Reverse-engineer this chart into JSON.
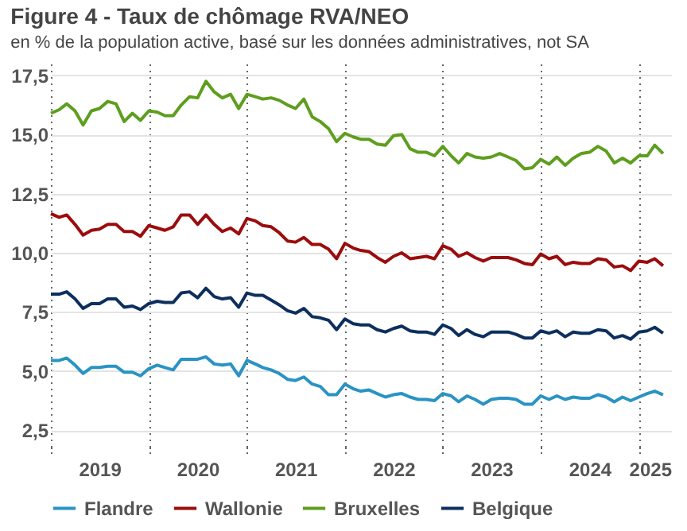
{
  "chart_data": {
    "type": "line",
    "title": "Figure 4 - Taux de chômage RVA/NEO",
    "subtitle": "en % de la population active, basé sur les données administratives, not SA",
    "x": [
      "2019-01",
      "2019-02",
      "2019-03",
      "2019-04",
      "2019-05",
      "2019-06",
      "2019-07",
      "2019-08",
      "2019-09",
      "2019-10",
      "2019-11",
      "2019-12",
      "2020-01",
      "2020-02",
      "2020-03",
      "2020-04",
      "2020-05",
      "2020-06",
      "2020-07",
      "2020-08",
      "2020-09",
      "2020-10",
      "2020-11",
      "2020-12",
      "2021-01",
      "2021-02",
      "2021-03",
      "2021-04",
      "2021-05",
      "2021-06",
      "2021-07",
      "2021-08",
      "2021-09",
      "2021-10",
      "2021-11",
      "2021-12",
      "2022-01",
      "2022-02",
      "2022-03",
      "2022-04",
      "2022-05",
      "2022-06",
      "2022-07",
      "2022-08",
      "2022-09",
      "2022-10",
      "2022-11",
      "2022-12",
      "2023-01",
      "2023-02",
      "2023-03",
      "2023-04",
      "2023-05",
      "2023-06",
      "2023-07",
      "2023-08",
      "2023-09",
      "2023-10",
      "2023-11",
      "2023-12",
      "2024-01",
      "2024-02",
      "2024-03",
      "2024-04",
      "2024-05",
      "2024-06",
      "2024-07",
      "2024-08",
      "2024-09",
      "2024-10",
      "2024-11",
      "2024-12",
      "2025-01",
      "2025-02",
      "2025-03",
      "2025-04"
    ],
    "series": [
      {
        "name": "Flandre",
        "color": "#2a93c4",
        "values": [
          5.45,
          5.45,
          5.55,
          5.25,
          4.9,
          5.15,
          5.15,
          5.2,
          5.2,
          4.95,
          4.95,
          4.8,
          5.1,
          5.25,
          5.15,
          5.05,
          5.5,
          5.5,
          5.5,
          5.6,
          5.3,
          5.25,
          5.3,
          4.8,
          5.45,
          5.3,
          5.15,
          5.05,
          4.9,
          4.65,
          4.6,
          4.75,
          4.45,
          4.35,
          4.0,
          4.0,
          4.45,
          4.25,
          4.15,
          4.2,
          4.05,
          3.9,
          4.0,
          4.05,
          3.9,
          3.8,
          3.8,
          3.75,
          4.05,
          3.95,
          3.7,
          3.95,
          3.8,
          3.6,
          3.8,
          3.85,
          3.85,
          3.8,
          3.6,
          3.6,
          3.95,
          3.8,
          3.95,
          3.8,
          3.9,
          3.85,
          3.85,
          4.0,
          3.9,
          3.7,
          3.9,
          3.75,
          3.9,
          4.05,
          4.15,
          4.0
        ]
      },
      {
        "name": "Wallonie",
        "color": "#9b0d0d",
        "values": [
          11.65,
          11.5,
          11.6,
          11.2,
          10.75,
          10.95,
          11.0,
          11.2,
          11.2,
          10.9,
          10.9,
          10.7,
          11.15,
          11.05,
          10.95,
          11.1,
          11.6,
          11.6,
          11.2,
          11.6,
          11.2,
          10.9,
          11.05,
          10.8,
          11.45,
          11.35,
          11.15,
          11.1,
          10.85,
          10.5,
          10.45,
          10.65,
          10.35,
          10.35,
          10.15,
          9.75,
          10.4,
          10.2,
          10.1,
          10.05,
          9.8,
          9.6,
          9.85,
          10.0,
          9.75,
          9.8,
          9.85,
          9.75,
          10.3,
          10.15,
          9.85,
          10.0,
          9.8,
          9.65,
          9.8,
          9.8,
          9.8,
          9.7,
          9.55,
          9.5,
          9.95,
          9.75,
          9.85,
          9.5,
          9.6,
          9.55,
          9.55,
          9.75,
          9.7,
          9.4,
          9.45,
          9.25,
          9.65,
          9.6,
          9.75,
          9.45
        ]
      },
      {
        "name": "Bruxelles",
        "color": "#5e9e1e",
        "values": [
          15.9,
          16.05,
          16.3,
          16.0,
          15.4,
          16.0,
          16.1,
          16.4,
          16.3,
          15.55,
          15.9,
          15.6,
          16.0,
          15.95,
          15.8,
          15.8,
          16.25,
          16.6,
          16.55,
          17.25,
          16.8,
          16.55,
          16.7,
          16.1,
          16.7,
          16.6,
          16.5,
          16.55,
          16.45,
          16.25,
          16.1,
          16.5,
          15.75,
          15.55,
          15.25,
          14.7,
          15.05,
          14.9,
          14.8,
          14.8,
          14.6,
          14.55,
          14.95,
          15.0,
          14.4,
          14.25,
          14.25,
          14.1,
          14.5,
          14.1,
          13.8,
          14.2,
          14.05,
          14.0,
          14.05,
          14.2,
          14.05,
          13.9,
          13.55,
          13.6,
          13.95,
          13.75,
          14.05,
          13.7,
          14.0,
          14.2,
          14.25,
          14.5,
          14.3,
          13.8,
          14.0,
          13.8,
          14.1,
          14.1,
          14.55,
          14.2
        ]
      },
      {
        "name": "Belgique",
        "color": "#0d2f5e",
        "values": [
          8.25,
          8.25,
          8.35,
          8.05,
          7.65,
          7.85,
          7.85,
          8.05,
          8.05,
          7.7,
          7.75,
          7.6,
          7.85,
          7.95,
          7.9,
          7.9,
          8.3,
          8.35,
          8.1,
          8.5,
          8.15,
          8.05,
          8.1,
          7.7,
          8.3,
          8.2,
          8.2,
          8.0,
          7.8,
          7.55,
          7.45,
          7.65,
          7.3,
          7.25,
          7.15,
          6.75,
          7.2,
          7.0,
          6.95,
          6.95,
          6.75,
          6.65,
          6.8,
          6.9,
          6.7,
          6.65,
          6.65,
          6.55,
          6.95,
          6.8,
          6.5,
          6.75,
          6.55,
          6.45,
          6.65,
          6.65,
          6.65,
          6.55,
          6.4,
          6.4,
          6.7,
          6.6,
          6.7,
          6.45,
          6.65,
          6.6,
          6.6,
          6.75,
          6.7,
          6.4,
          6.5,
          6.35,
          6.65,
          6.7,
          6.85,
          6.6
        ]
      }
    ],
    "xlim": [
      "2019-01",
      "2025-05"
    ],
    "xticks": [
      {
        "value": "2019-01",
        "label": null
      },
      {
        "value": "2019-07",
        "label": "2019"
      },
      {
        "value": "2020-01",
        "label": null
      },
      {
        "value": "2020-07",
        "label": "2020"
      },
      {
        "value": "2021-01",
        "label": null
      },
      {
        "value": "2021-07",
        "label": "2021"
      },
      {
        "value": "2022-01",
        "label": null
      },
      {
        "value": "2022-07",
        "label": "2022"
      },
      {
        "value": "2023-01",
        "label": null
      },
      {
        "value": "2023-07",
        "label": "2023"
      },
      {
        "value": "2024-01",
        "label": null
      },
      {
        "value": "2024-07",
        "label": "2024"
      },
      {
        "value": "2025-01",
        "label": null
      },
      {
        "value": "2025-05",
        "label": "2025"
      }
    ],
    "ylim": [
      1.8,
      18
    ],
    "yticks": [
      {
        "value": 2.5,
        "label": "2,5"
      },
      {
        "value": 5,
        "label": "5,0"
      },
      {
        "value": 7.5,
        "label": "7,5"
      },
      {
        "value": 10,
        "label": "10,0"
      },
      {
        "value": 12.5,
        "label": "12,5"
      },
      {
        "value": 15,
        "label": "15,0"
      },
      {
        "value": 17.5,
        "label": "17,5"
      }
    ],
    "grid": true,
    "legend": "bottom"
  }
}
